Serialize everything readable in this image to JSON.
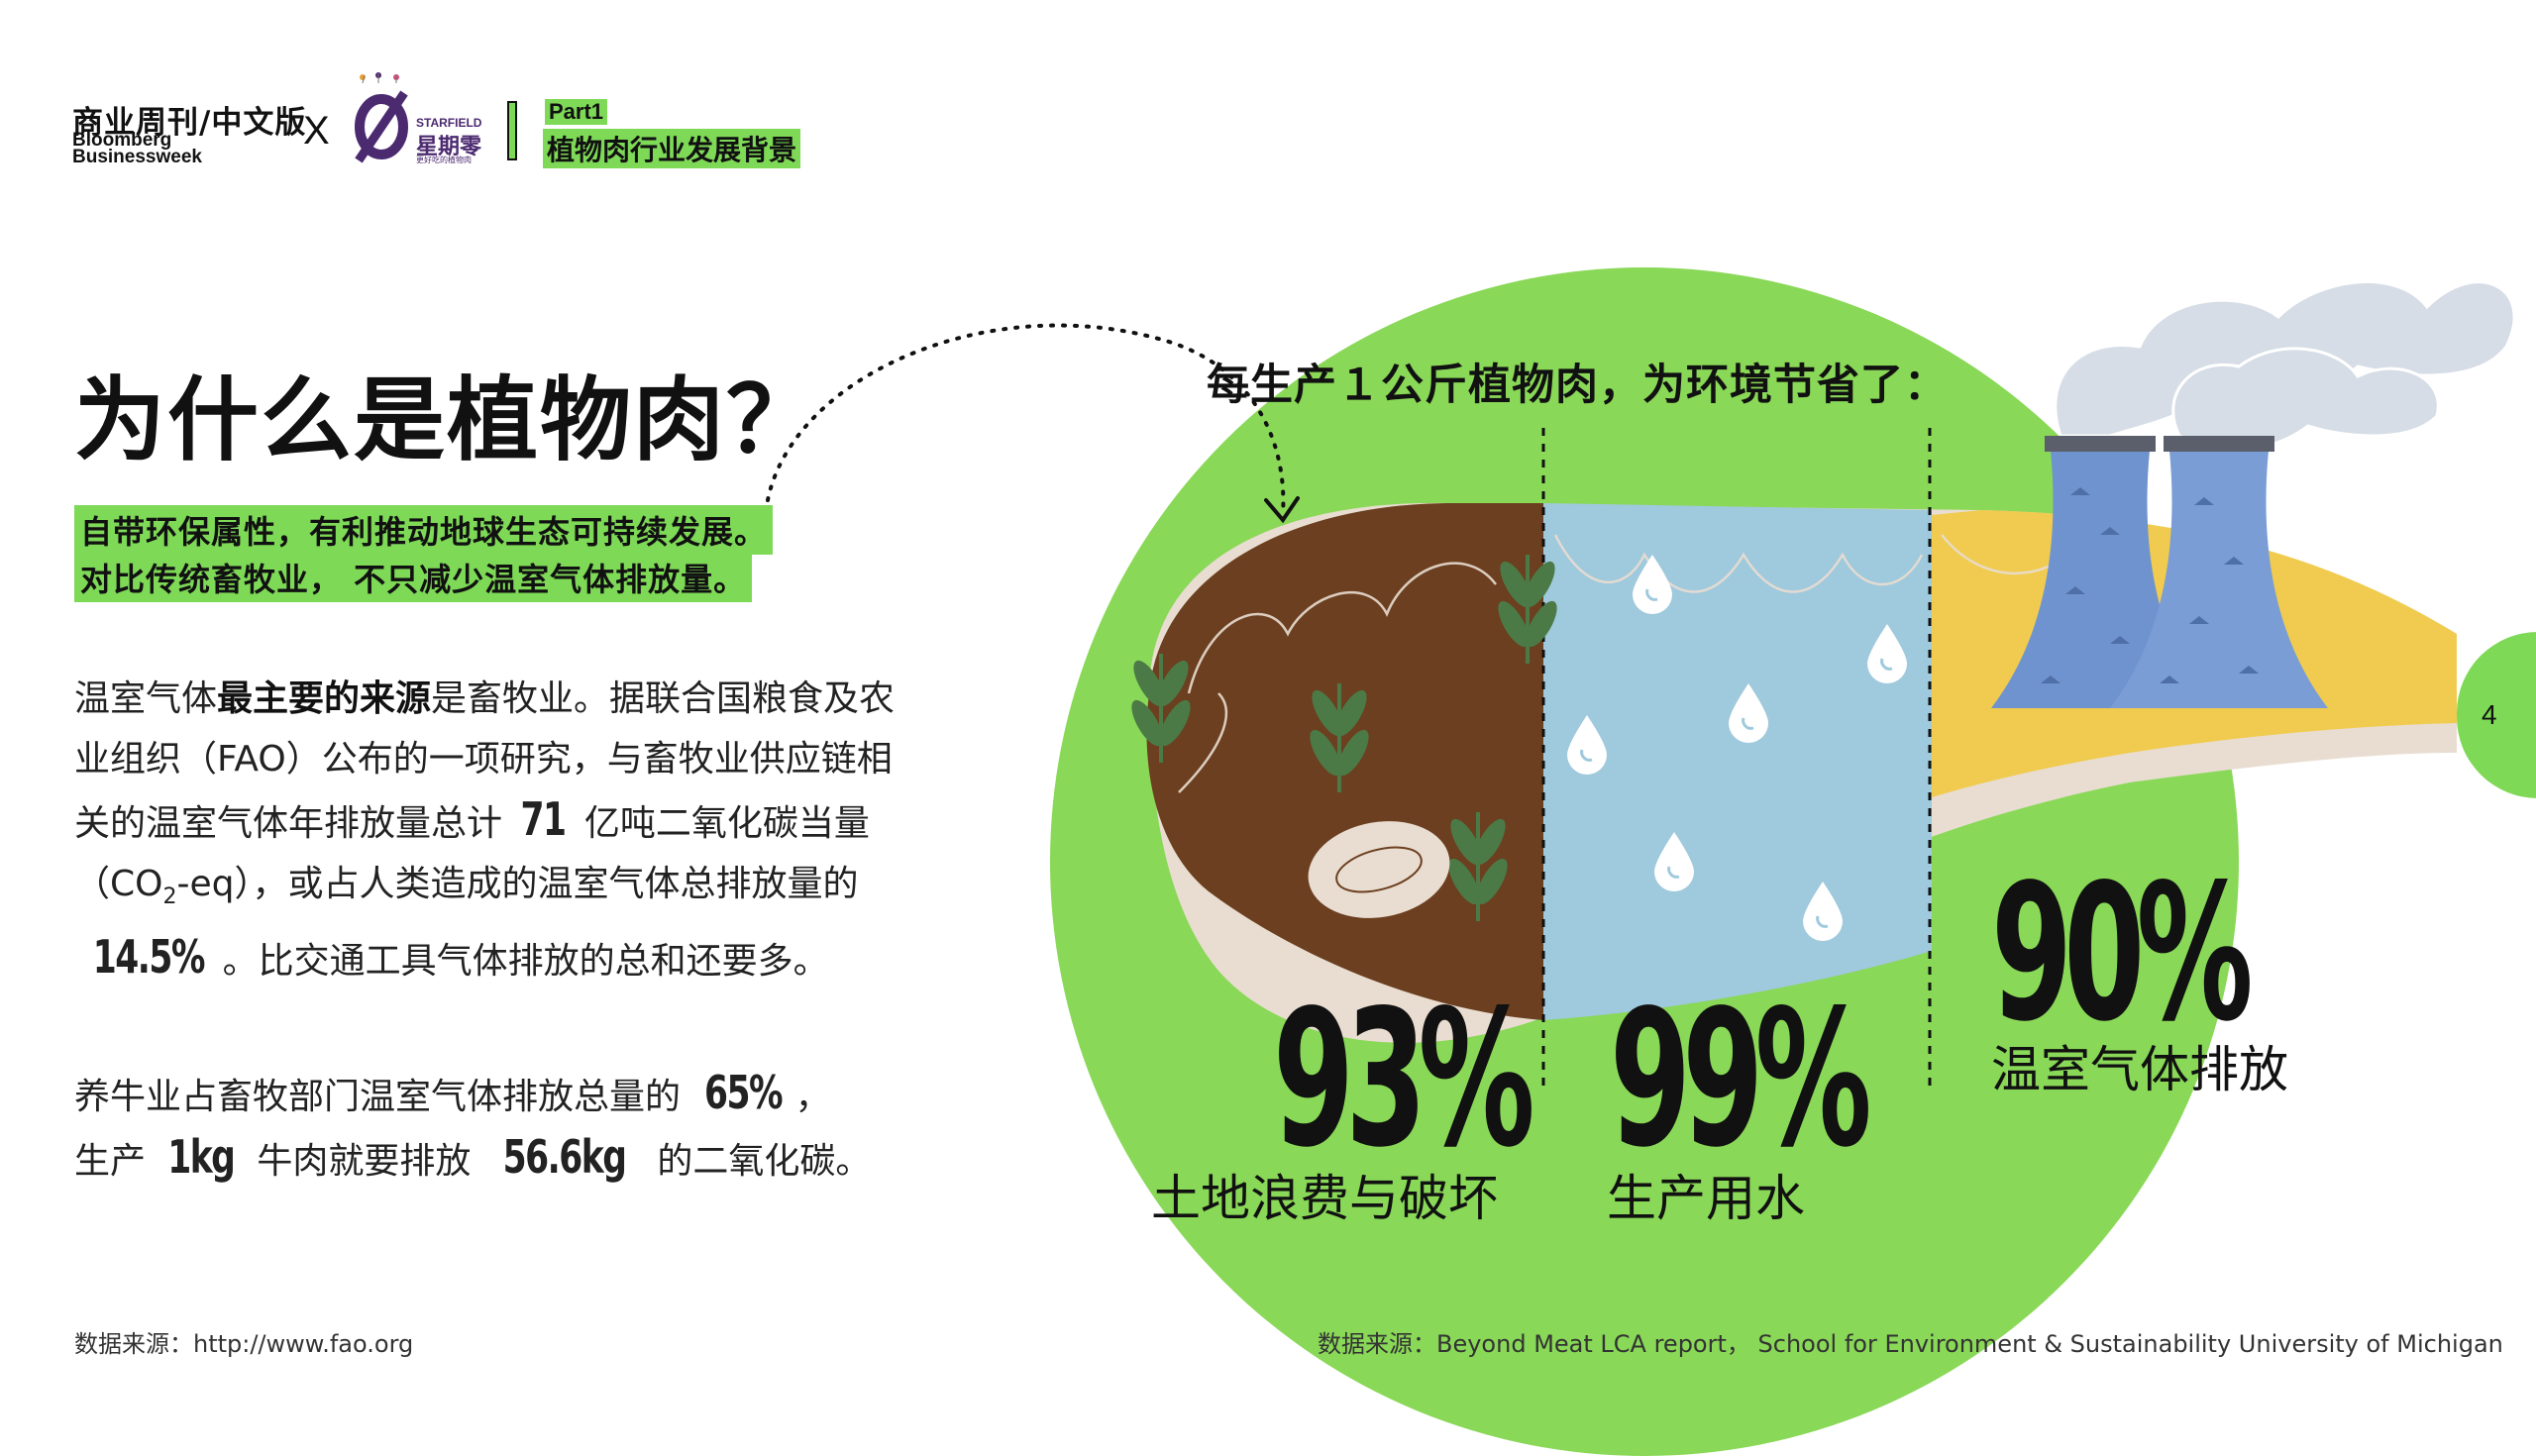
{
  "header": {
    "brand_cn": "商业周刊/中文版",
    "brand_en_1": "Bloomberg",
    "brand_en_2": "Businessweek",
    "cross": "X",
    "partner_en": "STARFIELD",
    "partner_cn": "星期零",
    "partner_sub": "更好吃的植物肉",
    "part": "Part1",
    "section_title": "植物肉行业发展背景"
  },
  "main": {
    "title": "为什么是植物肉？",
    "highlight_1": "自带环保属性，有利推动地球生态可持续发展。",
    "highlight_2": "对比传统畜牧业， 不只减少温室气体排放量。",
    "p1_a": "温室气体",
    "p1_b": "最主要的来源",
    "p1_c": "是畜牧业。据联合国粮食及农业组织（FAO）公布的一项研究，与畜牧业供应链相关的温室气体年排放量总计 ",
    "p1_num1": "71",
    "p1_d": " 亿吨二氧化碳当量（CO",
    "p1_sub": "2",
    "p1_e": "-eq），或占人类造成的温室气体总排放量的 ",
    "p1_num2": "14.5%",
    "p1_f": "。比交通工具气体排放的总和还要多。",
    "p2_a": "养牛业占畜牧部门温室气体排放总量的 ",
    "p2_num1": "65%",
    "p2_b": "，",
    "p2_c": "生产 ",
    "p2_num2": "1kg",
    "p2_d": " 牛肉就要排放 ",
    "p2_num3": "56.6kg",
    "p2_e": " 的二氧化碳。"
  },
  "graphic": {
    "title": "每生产１公斤植物肉，为环境节省了：",
    "stats": [
      {
        "value": "93%",
        "label": "土地浪费与破坏"
      },
      {
        "value": "99%",
        "label": "生产用水"
      },
      {
        "value": "90%",
        "label": "温室气体排放"
      }
    ]
  },
  "footer": {
    "source_left": "数据来源：http://www.fao.org",
    "source_right": "数据来源：Beyond Meat LCA report， School for Environment & Sustainability University of Michigan"
  },
  "page_number": "4",
  "colors": {
    "accent_green": "#7ed957",
    "circle_green": "#89d857",
    "meat_brown": "#6b3f1f",
    "water_blue": "#9fc9dc",
    "yellow": "#f0cb4f",
    "fat_beige": "#e9ddd1",
    "plant_green": "#4b7a46",
    "tower_blue": "#6f93cf"
  }
}
